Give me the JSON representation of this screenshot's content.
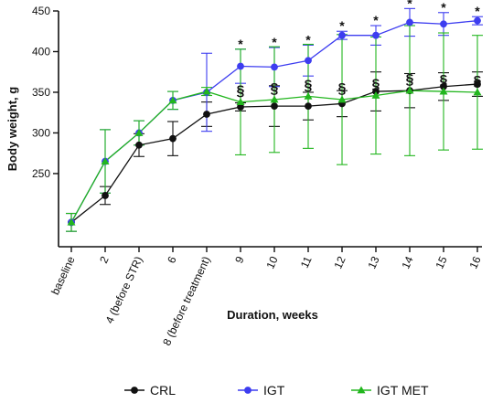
{
  "chart_data": {
    "type": "line",
    "title": "",
    "xlabel": "Duration, weeks",
    "ylabel": "Body weight, g",
    "categories": [
      "baseline",
      "2",
      "4 (before STR)",
      "6",
      "8 (before treatment)",
      "9",
      "10",
      "11",
      "12",
      "13",
      "14",
      "15",
      "16"
    ],
    "ylim": [
      160,
      450
    ],
    "yticks": [
      250,
      300,
      350,
      400,
      450
    ],
    "grid": false,
    "legend_position": "bottom",
    "series": [
      {
        "name": "CRL",
        "color": "#111111",
        "marker": "circle",
        "values": [
          190,
          223,
          285,
          293,
          323,
          332,
          333,
          333,
          336,
          351,
          352,
          357,
          360
        ],
        "errors": [
          11,
          11,
          14,
          21,
          15,
          5,
          25,
          17,
          16,
          24,
          21,
          17,
          15
        ]
      },
      {
        "name": "IGT",
        "color": "#3d3df0",
        "marker": "circle",
        "values": [
          190,
          265,
          300,
          340,
          350,
          382,
          381,
          389,
          420,
          420,
          436,
          434,
          438
        ],
        "errors": [
          11,
          39,
          15,
          11,
          48,
          21,
          24,
          19,
          5,
          12,
          17,
          14,
          5
        ]
      },
      {
        "name": "IGT MET",
        "color": "#22b61e",
        "marker": "triangle",
        "values": [
          190,
          265,
          300,
          340,
          351,
          338,
          341,
          345,
          341,
          346,
          352,
          351,
          350
        ],
        "errors": [
          11,
          39,
          15,
          11,
          5,
          65,
          65,
          64,
          80,
          72,
          80,
          72,
          70
        ]
      }
    ],
    "annotations": {
      "star_symbol": "*",
      "star_indices": [
        5,
        6,
        7,
        8,
        9,
        10,
        11,
        12
      ],
      "section_symbol": "§",
      "section_indices": [
        5,
        6,
        7,
        8,
        9,
        10,
        11,
        12
      ]
    }
  }
}
